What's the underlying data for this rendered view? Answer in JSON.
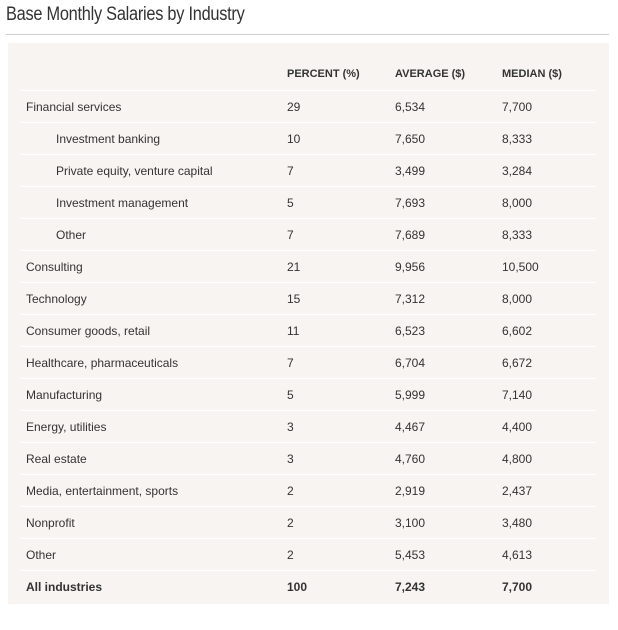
{
  "title": "Base Monthly Salaries by Industry",
  "table": {
    "headers": {
      "industry": "",
      "percent": "PERCENT (%)",
      "average": "AVERAGE ($)",
      "median": "MEDIAN ($)"
    },
    "rows": [
      {
        "industry": "Financial services",
        "percent": "29",
        "average": "6,534",
        "median": "7,700",
        "sub": false
      },
      {
        "industry": "Investment banking",
        "percent": "10",
        "average": "7,650",
        "median": "8,333",
        "sub": true
      },
      {
        "industry": "Private equity, venture capital",
        "percent": "7",
        "average": "3,499",
        "median": "3,284",
        "sub": true
      },
      {
        "industry": "Investment management",
        "percent": "5",
        "average": "7,693",
        "median": "8,000",
        "sub": true
      },
      {
        "industry": "Other",
        "percent": "7",
        "average": "7,689",
        "median": "8,333",
        "sub": true
      },
      {
        "industry": "Consulting",
        "percent": "21",
        "average": "9,956",
        "median": "10,500",
        "sub": false
      },
      {
        "industry": "Technology",
        "percent": "15",
        "average": "7,312",
        "median": "8,000",
        "sub": false
      },
      {
        "industry": "Consumer goods, retail",
        "percent": "11",
        "average": "6,523",
        "median": "6,602",
        "sub": false
      },
      {
        "industry": "Healthcare, pharmaceuticals",
        "percent": "7",
        "average": "6,704",
        "median": "6,672",
        "sub": false
      },
      {
        "industry": "Manufacturing",
        "percent": "5",
        "average": "5,999",
        "median": "7,140",
        "sub": false
      },
      {
        "industry": "Energy, utilities",
        "percent": "3",
        "average": "4,467",
        "median": "4,400",
        "sub": false
      },
      {
        "industry": "Real estate",
        "percent": "3",
        "average": "4,760",
        "median": "4,800",
        "sub": false
      },
      {
        "industry": "Media, entertainment, sports",
        "percent": "2",
        "average": "2,919",
        "median": "2,437",
        "sub": false
      },
      {
        "industry": "Nonprofit",
        "percent": "2",
        "average": "3,100",
        "median": "3,480",
        "sub": false
      },
      {
        "industry": "Other",
        "percent": "2",
        "average": "5,453",
        "median": "4,613",
        "sub": false
      }
    ],
    "total": {
      "industry": "All industries",
      "percent": "100",
      "average": "7,243",
      "median": "7,700"
    }
  }
}
